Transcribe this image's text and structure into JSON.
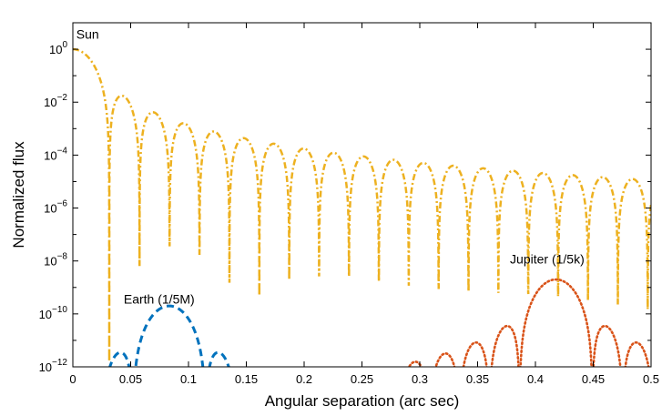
{
  "chart_data": {
    "type": "line",
    "xlabel": "Angular separation (arc sec)",
    "ylabel": "Normalized flux",
    "xlim": [
      0,
      0.5
    ],
    "ylim": [
      1e-12,
      10
    ],
    "yscale": "log",
    "grid": false,
    "x_ticks": [
      "0",
      "0.05",
      "0.1",
      "0.15",
      "0.2",
      "0.25",
      "0.3",
      "0.35",
      "0.4",
      "0.45",
      "0.5"
    ],
    "y_ticks": [
      {
        "base": "10",
        "exp": "0"
      },
      {
        "base": "10",
        "exp": "−2"
      },
      {
        "base": "10",
        "exp": "−4"
      },
      {
        "base": "10",
        "exp": "−6"
      },
      {
        "base": "10",
        "exp": "−8"
      },
      {
        "base": "10",
        "exp": "−10"
      },
      {
        "base": "10",
        "exp": "−12"
      }
    ],
    "annotations": [
      {
        "text": "Sun",
        "x": 0.003,
        "y": 2.5
      },
      {
        "text": "Earth (1/5M)",
        "x": 0.044,
        "y": 2.5e-10
      },
      {
        "text": "Jupiter (1/5k)",
        "x": 0.378,
        "y": 8e-09
      }
    ],
    "series": [
      {
        "label": "Sun",
        "color": "#EDB120",
        "style": "dash-dot",
        "peak": 1.0,
        "center": 0.0,
        "airy_radius": 0.0315,
        "x": [
          0,
          0.005,
          0.01,
          0.015,
          0.02,
          0.025,
          0.0315,
          0.042,
          0.0576,
          0.0672,
          0.083,
          0.0927,
          0.109,
          0.1185,
          0.1345,
          0.1441,
          0.16,
          0.1698,
          0.186,
          0.1955,
          0.212,
          0.2216,
          0.237,
          0.2473,
          0.263,
          0.2729,
          0.289,
          0.2984,
          0.314,
          0.3243,
          0.34,
          0.35,
          0.365,
          0.3755,
          0.391,
          0.4016,
          0.416,
          0.427,
          0.442,
          0.4528,
          0.468,
          0.4785,
          0.493,
          0.5
        ],
        "y": [
          1.0,
          0.85,
          0.5,
          0.2,
          0.05,
          0.005,
          5e-06,
          0.00175,
          4e-06,
          0.00042,
          1.2e-06,
          0.00016,
          2e-09,
          7.8e-05,
          1.5e-06,
          4.3e-05,
          1.2e-06,
          2.6e-05,
          1.5e-06,
          1.7e-05,
          6e-08,
          1.2e-05,
          2e-09,
          8e-06,
          1e-09,
          6e-06,
          4e-07,
          4.5e-06,
          1e-08,
          3.4e-06,
          2e-08,
          2.7e-06,
          1e-07,
          2.2e-06,
          1e-11,
          1.8e-06,
          1.5e-07,
          1.5e-06,
          2e-07,
          1.2e-06,
          2e-08,
          1e-06,
          5e-07,
          1.5e-06
        ]
      },
      {
        "label": "Earth",
        "color": "#0072BD",
        "style": "dashed",
        "peak": 2e-10,
        "center": 0.0834,
        "airy_radius": 0.0315,
        "x": [
          0.02,
          0.038,
          0.052,
          0.0834,
          0.1149,
          0.129,
          0.134
        ],
        "y": [
          1e-12,
          4e-13,
          1e-12,
          2e-10,
          1e-12,
          4e-13,
          1e-12
        ]
      },
      {
        "label": "Jupiter",
        "color": "#D95319",
        "style": "dotted",
        "peak": 2e-09,
        "center": 0.4178,
        "airy_radius": 0.0315,
        "x": [
          0.29,
          0.31,
          0.33,
          0.36,
          0.3863,
          0.4178,
          0.4493,
          0.47,
          0.49,
          0.5
        ],
        "y": [
          1e-12,
          2e-12,
          6e-12,
          3e-11,
          1e-12,
          2e-09,
          1e-12,
          3e-11,
          6e-12,
          1e-12
        ]
      }
    ]
  }
}
